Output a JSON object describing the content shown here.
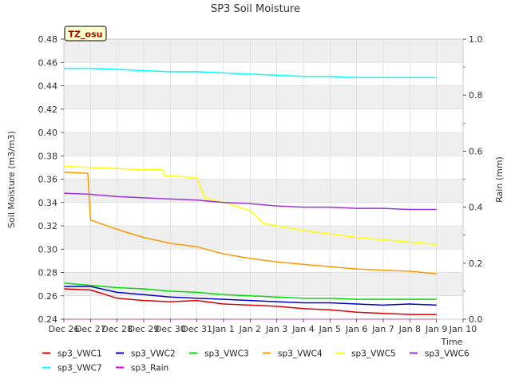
{
  "chart_data": {
    "type": "line",
    "title": "SP3 Soil Moisture",
    "xlabel": "Time",
    "ylabel": "Soil Moisture (m3/m3)",
    "y2label": "Rain (mm)",
    "annotation": "TZ_osu",
    "x_domain": [
      "Dec 26",
      "Jan 10"
    ],
    "ylim": [
      0.24,
      0.48
    ],
    "y2lim": [
      0.0,
      1.0
    ],
    "x_ticks": [
      "Dec 26",
      "Dec 27",
      "Dec 28",
      "Dec 29",
      "Dec 30",
      "Dec 31",
      "Jan 1",
      "Jan 2",
      "Jan 3",
      "Jan 4",
      "Jan 5",
      "Jan 6",
      "Jan 7",
      "Jan 8",
      "Jan 9",
      "Jan 10"
    ],
    "y_ticks": [
      "0.24",
      "0.26",
      "0.28",
      "0.30",
      "0.32",
      "0.34",
      "0.36",
      "0.38",
      "0.40",
      "0.42",
      "0.44",
      "0.46",
      "0.48"
    ],
    "y2_ticks": [
      "0.0",
      "0.2",
      "0.4",
      "0.6",
      "0.8",
      "1.0"
    ],
    "grid": true,
    "legend_position": "bottom",
    "series": [
      {
        "name": "sp3_VWC1",
        "color": "#dd0000",
        "axis": "left",
        "points": [
          [
            "Dec 26",
            0.266
          ],
          [
            "Dec 27",
            0.265
          ],
          [
            "Dec 28",
            0.258
          ],
          [
            "Dec 29",
            0.256
          ],
          [
            "Dec 30",
            0.255
          ],
          [
            "Dec 31",
            0.256
          ],
          [
            "Jan 1",
            0.253
          ],
          [
            "Jan 2",
            0.252
          ],
          [
            "Jan 3",
            0.251
          ],
          [
            "Jan 4",
            0.249
          ],
          [
            "Jan 5",
            0.248
          ],
          [
            "Jan 6",
            0.246
          ],
          [
            "Jan 7",
            0.245
          ],
          [
            "Jan 8",
            0.244
          ],
          [
            "Jan 9",
            0.244
          ]
        ]
      },
      {
        "name": "sp3_VWC2",
        "color": "#0000cc",
        "axis": "left",
        "points": [
          [
            "Dec 26",
            0.268
          ],
          [
            "Dec 27",
            0.268
          ],
          [
            "Dec 28",
            0.263
          ],
          [
            "Dec 29",
            0.261
          ],
          [
            "Dec 30",
            0.259
          ],
          [
            "Dec 31",
            0.258
          ],
          [
            "Jan 1",
            0.257
          ],
          [
            "Jan 2",
            0.256
          ],
          [
            "Jan 3",
            0.255
          ],
          [
            "Jan 4",
            0.254
          ],
          [
            "Jan 5",
            0.254
          ],
          [
            "Jan 6",
            0.253
          ],
          [
            "Jan 7",
            0.252
          ],
          [
            "Jan 8",
            0.253
          ],
          [
            "Jan 9",
            0.252
          ]
        ]
      },
      {
        "name": "sp3_VWC3",
        "color": "#00dd00",
        "axis": "left",
        "points": [
          [
            "Dec 26",
            0.271
          ],
          [
            "Dec 27",
            0.269
          ],
          [
            "Dec 28",
            0.267
          ],
          [
            "Dec 29",
            0.266
          ],
          [
            "Dec 30",
            0.264
          ],
          [
            "Dec 31",
            0.263
          ],
          [
            "Jan 1",
            0.261
          ],
          [
            "Jan 2",
            0.26
          ],
          [
            "Jan 3",
            0.259
          ],
          [
            "Jan 4",
            0.258
          ],
          [
            "Jan 5",
            0.258
          ],
          [
            "Jan 6",
            0.257
          ],
          [
            "Jan 7",
            0.257
          ],
          [
            "Jan 8",
            0.257
          ],
          [
            "Jan 9",
            0.257
          ]
        ]
      },
      {
        "name": "sp3_VWC4",
        "color": "#ff9900",
        "axis": "left",
        "points": [
          [
            "Dec 26",
            0.366
          ],
          [
            "Dec 26.9",
            0.365
          ],
          [
            "Dec 27",
            0.325
          ],
          [
            "Dec 28",
            0.317
          ],
          [
            "Dec 29",
            0.31
          ],
          [
            "Dec 30",
            0.305
          ],
          [
            "Dec 31",
            0.302
          ],
          [
            "Jan 1",
            0.296
          ],
          [
            "Jan 2",
            0.292
          ],
          [
            "Jan 3",
            0.289
          ],
          [
            "Jan 4",
            0.287
          ],
          [
            "Jan 5",
            0.285
          ],
          [
            "Jan 6",
            0.283
          ],
          [
            "Jan 7",
            0.282
          ],
          [
            "Jan 8",
            0.281
          ],
          [
            "Jan 9",
            0.279
          ]
        ]
      },
      {
        "name": "sp3_VWC5",
        "color": "#ffff00",
        "axis": "left",
        "points": [
          [
            "Dec 26",
            0.371
          ],
          [
            "Dec 27",
            0.37
          ],
          [
            "Dec 28",
            0.369
          ],
          [
            "Dec 29",
            0.368
          ],
          [
            "Dec 29.7",
            0.368
          ],
          [
            "Dec 29.8",
            0.363
          ],
          [
            "Dec 30",
            0.363
          ],
          [
            "Dec 31",
            0.361
          ],
          [
            "Dec 31.3",
            0.344
          ],
          [
            "Jan 1",
            0.34
          ],
          [
            "Jan 2",
            0.333
          ],
          [
            "Jan 2.5",
            0.322
          ],
          [
            "Jan 3",
            0.32
          ],
          [
            "Jan 4",
            0.316
          ],
          [
            "Jan 5",
            0.313
          ],
          [
            "Jan 6",
            0.31
          ],
          [
            "Jan 7",
            0.308
          ],
          [
            "Jan 8",
            0.306
          ],
          [
            "Jan 9",
            0.304
          ]
        ]
      },
      {
        "name": "sp3_VWC6",
        "color": "#9933dd",
        "axis": "left",
        "points": [
          [
            "Dec 26",
            0.348
          ],
          [
            "Dec 27",
            0.347
          ],
          [
            "Dec 28",
            0.345
          ],
          [
            "Dec 29",
            0.344
          ],
          [
            "Dec 30",
            0.343
          ],
          [
            "Dec 31",
            0.342
          ],
          [
            "Jan 1",
            0.34
          ],
          [
            "Jan 2",
            0.339
          ],
          [
            "Jan 3",
            0.337
          ],
          [
            "Jan 4",
            0.336
          ],
          [
            "Jan 5",
            0.336
          ],
          [
            "Jan 6",
            0.335
          ],
          [
            "Jan 7",
            0.335
          ],
          [
            "Jan 8",
            0.334
          ],
          [
            "Jan 9",
            0.334
          ]
        ]
      },
      {
        "name": "sp3_VWC7",
        "color": "#00ffff",
        "axis": "left",
        "points": [
          [
            "Dec 26",
            0.455
          ],
          [
            "Dec 27",
            0.455
          ],
          [
            "Dec 28",
            0.454
          ],
          [
            "Dec 29",
            0.453
          ],
          [
            "Dec 30",
            0.452
          ],
          [
            "Dec 31",
            0.452
          ],
          [
            "Jan 1",
            0.451
          ],
          [
            "Jan 2",
            0.45
          ],
          [
            "Jan 3",
            0.449
          ],
          [
            "Jan 4",
            0.448
          ],
          [
            "Jan 5",
            0.448
          ],
          [
            "Jan 6",
            0.447
          ],
          [
            "Jan 7",
            0.447
          ],
          [
            "Jan 8",
            0.447
          ],
          [
            "Jan 9",
            0.447
          ]
        ]
      },
      {
        "name": "sp3_Rain",
        "color": "#dd00dd",
        "axis": "right",
        "points": [
          [
            "Dec 26",
            0.0
          ],
          [
            "Jan 9",
            0.0
          ]
        ]
      }
    ]
  }
}
